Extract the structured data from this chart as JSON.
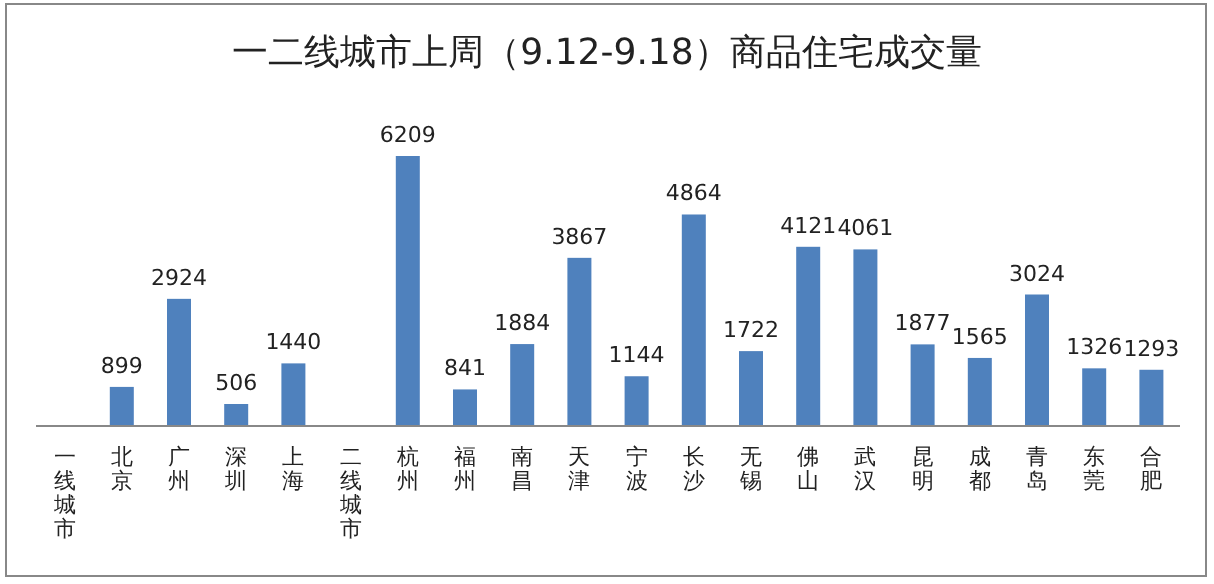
{
  "chart_data": {
    "type": "bar",
    "title": "一二线城市上周（9.12-9.18）商品住宅成交量",
    "categories": [
      "一线城市",
      "北京",
      "广州",
      "深圳",
      "上海",
      "二线城市",
      "杭州",
      "福州",
      "南昌",
      "天津",
      "宁波",
      "长沙",
      "无锡",
      "佛山",
      "武汉",
      "昆明",
      "成都",
      "青岛",
      "东莞",
      "合肥"
    ],
    "values": [
      null,
      899,
      2924,
      506,
      1440,
      null,
      6209,
      841,
      1884,
      3867,
      1144,
      4864,
      1722,
      4121,
      4061,
      1877,
      1565,
      3024,
      1326,
      1293
    ],
    "color": "#4f81bd",
    "data_labels": true
  }
}
